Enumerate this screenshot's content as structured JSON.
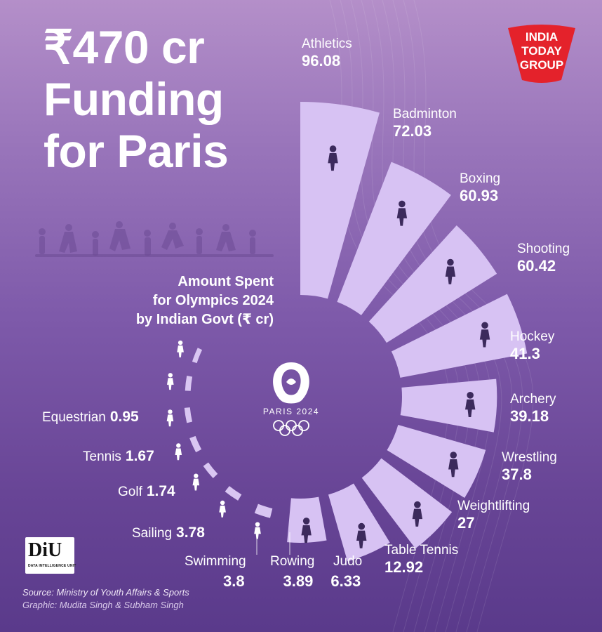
{
  "headline": {
    "line1": "₹470 cr",
    "line2": "Funding",
    "line3": "for Paris"
  },
  "subtitle": {
    "line1": "Amount Spent",
    "line2": "for Olympics 2024",
    "line3": "by Indian Govt (₹ cr)"
  },
  "brand_logo": {
    "line1": "INDIA",
    "line2": "TODAY",
    "line3": "GROUP"
  },
  "paris_logo": {
    "text": "PARIS 2024"
  },
  "diu_logo": {
    "text": "DiU",
    "sub": "DATA INTELLIGENCE UNIT"
  },
  "footer": {
    "source": "Source: Ministry of Youth Affairs & Sports",
    "credit": "Graphic: Mudita Singh & Subham Singh"
  },
  "colors": {
    "bar": "#d7c2f3",
    "bar_small": "#d9c6f2",
    "icon": "#3c2a5c",
    "text": "#ffffff",
    "logo_red": "#e4222b"
  },
  "chart_data": {
    "type": "bar",
    "layout": "radial",
    "categories": [
      "Athletics",
      "Badminton",
      "Boxing",
      "Shooting",
      "Hockey",
      "Archery",
      "Wrestling",
      "Weightlifting",
      "Table Tennis",
      "Judo",
      "Rowing",
      "Swimming",
      "Sailing",
      "Golf",
      "Tennis",
      "Equestrian"
    ],
    "values": [
      96.08,
      72.03,
      60.93,
      60.42,
      41.3,
      39.18,
      37.8,
      27,
      12.92,
      6.33,
      3.89,
      3.8,
      3.78,
      1.74,
      1.67,
      0.95
    ],
    "value_labels": [
      "96.08",
      "72.03",
      "60.93",
      "60.42",
      "41.3",
      "39.18",
      "37.8",
      "27",
      "12.92",
      "6.33",
      "3.89",
      "3.8",
      "3.78",
      "1.74",
      "1.67",
      "0.95"
    ],
    "icons": [
      "running-icon",
      "badminton-icon",
      "boxing-icon",
      "shooting-icon",
      "hockey-icon",
      "archery-icon",
      "wrestling-icon",
      "weightlifting-icon",
      "table-tennis-icon",
      "judo-icon",
      "rowing-icon",
      "swimming-icon",
      "sailing-icon",
      "golf-icon",
      "tennis-icon",
      "equestrian-icon"
    ],
    "unit": "₹ cr"
  }
}
